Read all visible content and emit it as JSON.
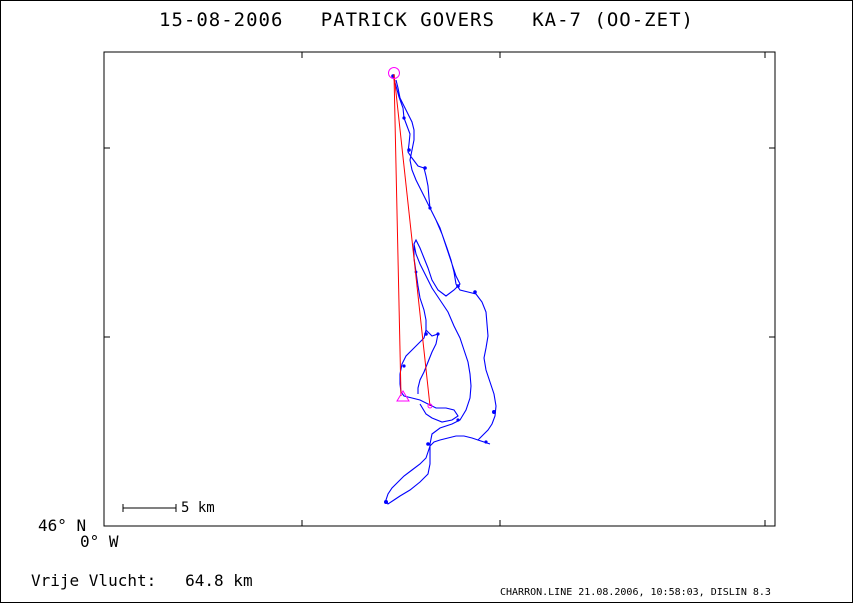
{
  "header": {
    "date": "15-08-2006",
    "pilot": "PATRICK GOVERS",
    "glider": "KA-7 (OO-ZET)"
  },
  "map": {
    "lat_label": "46° N",
    "lon_label": "0° W",
    "scale_label": "5 km",
    "track_color": "#0000ff",
    "task_color": "#ff0000",
    "marker_color": "#ff00ff",
    "start_icon": "circle-start-icon",
    "finish_icon": "triangle-finish-icon"
  },
  "footer": {
    "distance_label": "Vrije Vlucht:",
    "distance_value": "64.8 km",
    "credit": "CHARRON.LINE 21.08.2006, 10:58:03, DISLIN 8.3"
  }
}
